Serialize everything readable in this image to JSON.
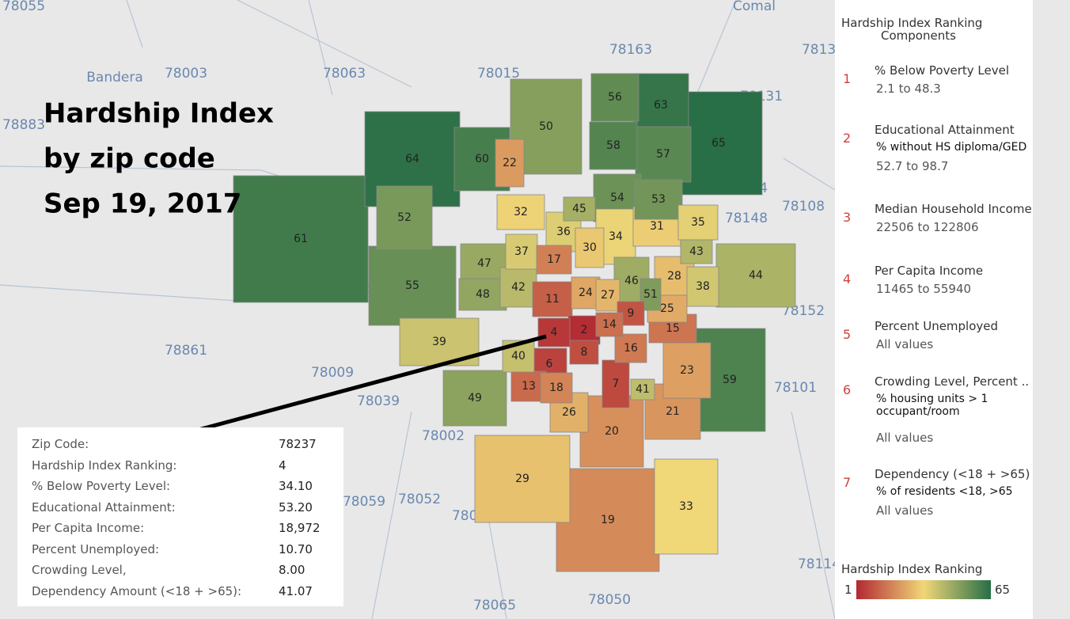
{
  "title": [
    "Hardship Index",
    "by zip code",
    "Sep 19, 2017"
  ],
  "map": {
    "regions": [
      2,
      4,
      6,
      7,
      8,
      9,
      11,
      13,
      14,
      15,
      16,
      17,
      18,
      19,
      20,
      21,
      22,
      23,
      24,
      25,
      26,
      27,
      28,
      29,
      30,
      31,
      32,
      33,
      34,
      35,
      36,
      37,
      38,
      39,
      40,
      41,
      42,
      43,
      44,
      45,
      46,
      47,
      48,
      49,
      50,
      51,
      52,
      53,
      54,
      55,
      56,
      57,
      58,
      59,
      60,
      61,
      63,
      64,
      65
    ],
    "place_labels": [
      "78055",
      "78003",
      "78063",
      "78015",
      "78163",
      "Comal",
      "Bandera",
      "78132",
      "78131",
      "78154",
      "78108",
      "78148",
      "78152",
      "78101",
      "78066",
      "78861",
      "78009",
      "78039",
      "78002",
      "78059",
      "78052",
      "78069",
      "78065",
      "78114",
      "78050",
      "78883"
    ]
  },
  "tooltip": {
    "rows": [
      [
        "Zip Code:",
        "78237"
      ],
      [
        "Hardship Index Ranking:",
        "4"
      ],
      [
        "% Below Poverty Level:",
        "34.10"
      ],
      [
        "Educational Attainment:",
        "53.20"
      ],
      [
        "Per Capita Income:",
        "18,972"
      ],
      [
        "Percent Unemployed:",
        "10.70"
      ],
      [
        "Crowding Level,",
        "8.00"
      ],
      [
        "Dependency Amount (<18 + >65):",
        "41.07"
      ]
    ]
  },
  "panel": {
    "title": [
      "Hardship Index Ranking",
      "Components"
    ],
    "components": [
      {
        "number": "1",
        "name": "% Below Poverty Level",
        "range": "2.1 to 48.3"
      },
      {
        "number": "2",
        "name": "Educational Attainment",
        "subtitle": "% without HS diploma/GED",
        "range": "52.7 to 98.7"
      },
      {
        "number": "3",
        "name": "Median Household Income",
        "range": "22506 to 122806"
      },
      {
        "number": "4",
        "name": "Per Capita Income",
        "range": "11465 to 55940"
      },
      {
        "number": "5",
        "name": "Percent Unemployed",
        "range": "All values"
      },
      {
        "number": "6",
        "name": "Crowding Level, Percent ..",
        "subtitle": "% housing units > 1 occupant/room",
        "range": "All values"
      },
      {
        "number": "7",
        "name": "Dependency (<18 + >65)",
        "subtitle": "% of residents <18, >65",
        "range": "All values"
      }
    ],
    "legend": {
      "title": "Hardship Index Ranking",
      "min": 1,
      "max": 65
    }
  }
}
